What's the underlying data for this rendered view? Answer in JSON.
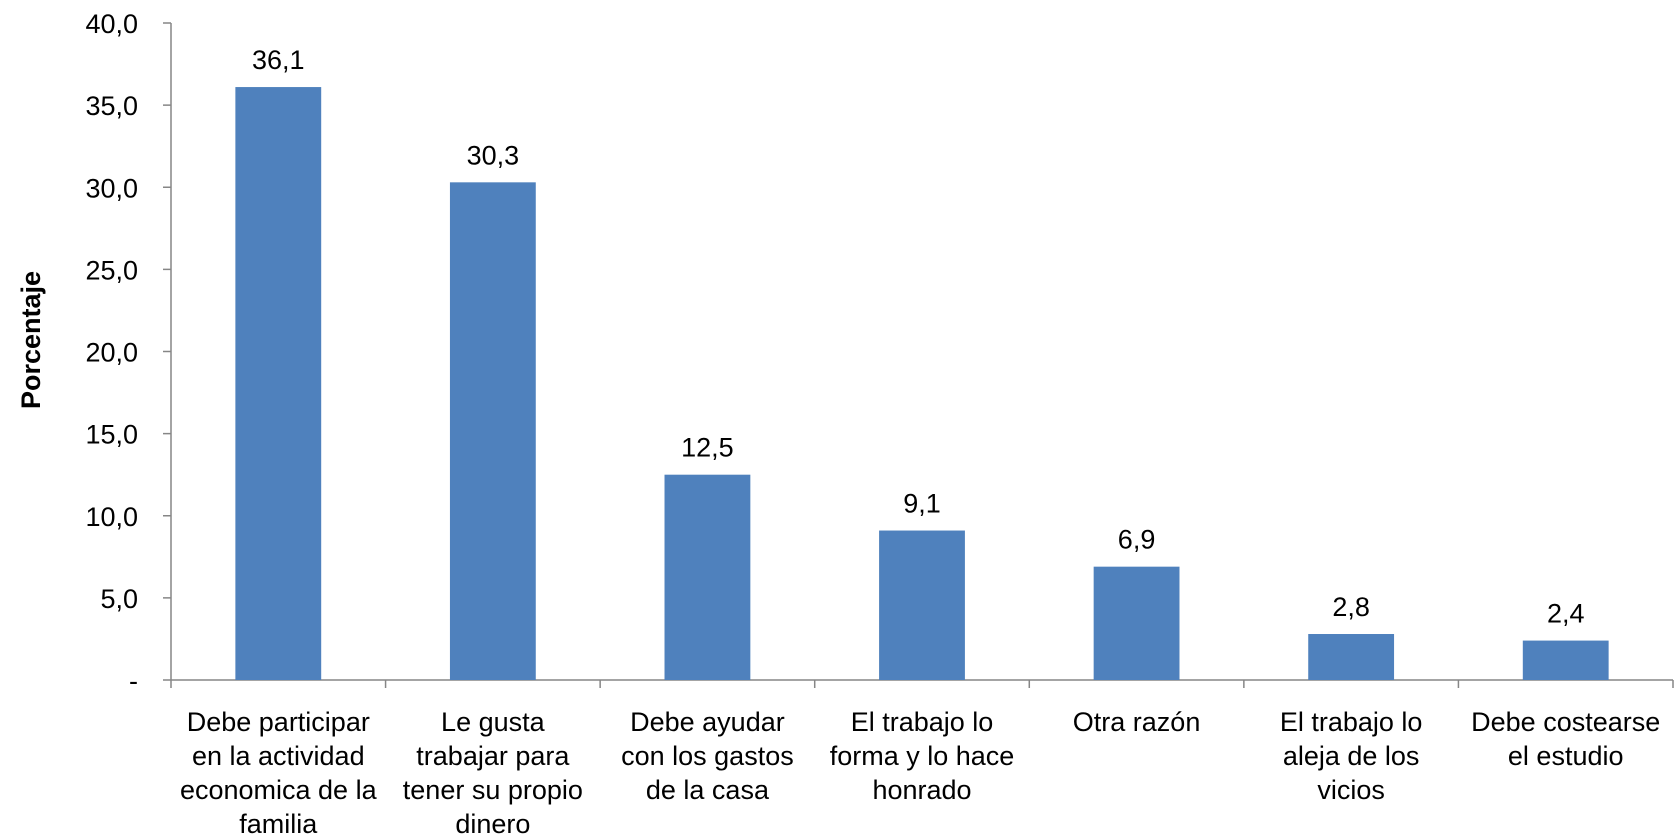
{
  "chart_data": {
    "type": "bar",
    "title": "",
    "xlabel": "",
    "ylabel": "Porcentaje",
    "ylim": [
      0,
      40
    ],
    "y_ticks": [
      {
        "value": 0,
        "label": "-"
      },
      {
        "value": 5,
        "label": "5,0"
      },
      {
        "value": 10,
        "label": "10,0"
      },
      {
        "value": 15,
        "label": "15,0"
      },
      {
        "value": 20,
        "label": "20,0"
      },
      {
        "value": 25,
        "label": "25,0"
      },
      {
        "value": 30,
        "label": "30,0"
      },
      {
        "value": 35,
        "label": "35,0"
      },
      {
        "value": 40,
        "label": "40,0"
      }
    ],
    "grid": false,
    "legend": "none",
    "bar_color": "#4F81BD",
    "categories": [
      [
        "Debe participar",
        "en la actividad",
        "economica de la",
        "familia"
      ],
      [
        "Le gusta",
        "trabajar para",
        "tener su propio",
        "dinero"
      ],
      [
        "Debe ayudar",
        "con los gastos",
        "de la casa"
      ],
      [
        "El trabajo lo",
        "forma y lo hace",
        "honrado"
      ],
      [
        "Otra razón"
      ],
      [
        "El trabajo lo",
        "aleja de los",
        "vicios"
      ],
      [
        "Debe costearse",
        "el estudio"
      ]
    ],
    "values": [
      36.1,
      30.3,
      12.5,
      9.1,
      6.9,
      2.8,
      2.4
    ],
    "value_labels": [
      "36,1",
      "30,3",
      "12,5",
      "9,1",
      "6,9",
      "2,8",
      "2,4"
    ]
  }
}
